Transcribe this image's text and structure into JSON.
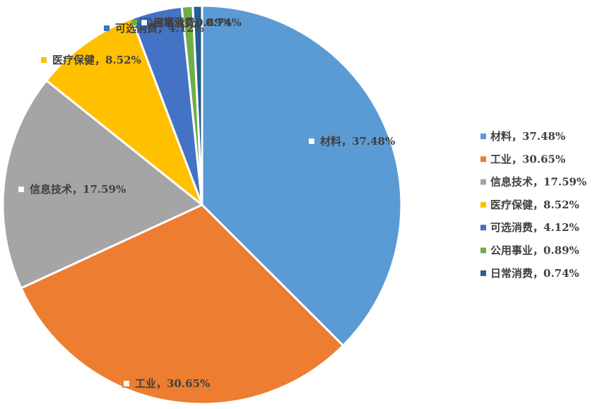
{
  "chart_data": {
    "type": "pie",
    "title": "",
    "legend_position": "right",
    "start_angle_deg": 0,
    "direction": "clockwise",
    "slices": [
      {
        "name": "材料",
        "value": 37.48,
        "label": "材料，37.48%",
        "color": "#5B9BD5"
      },
      {
        "name": "工业",
        "value": 30.65,
        "label": "工业，30.65%",
        "color": "#ED7D31"
      },
      {
        "name": "信息技术",
        "value": 17.59,
        "label": "信息技术，17.59%",
        "color": "#A5A5A5"
      },
      {
        "name": "医疗保健",
        "value": 8.52,
        "label": "医疗保健，8.52%",
        "color": "#FFC000"
      },
      {
        "name": "可选消费",
        "value": 4.12,
        "label": "可选消费，4.12%",
        "color": "#4472C4"
      },
      {
        "name": "公用事业",
        "value": 0.89,
        "label": "公用事业，0.89%",
        "color": "#70AD47"
      },
      {
        "name": "日常消费",
        "value": 0.74,
        "label": "日常消费，0.74%",
        "color": "#255E91"
      }
    ],
    "legend": [
      "材料，37.48%",
      "工业，30.65%",
      "信息技术，17.59%",
      "医疗保健，8.52%",
      "可选消费，4.12%",
      "公用事业，0.89%",
      "日常消费，0.74%"
    ]
  }
}
